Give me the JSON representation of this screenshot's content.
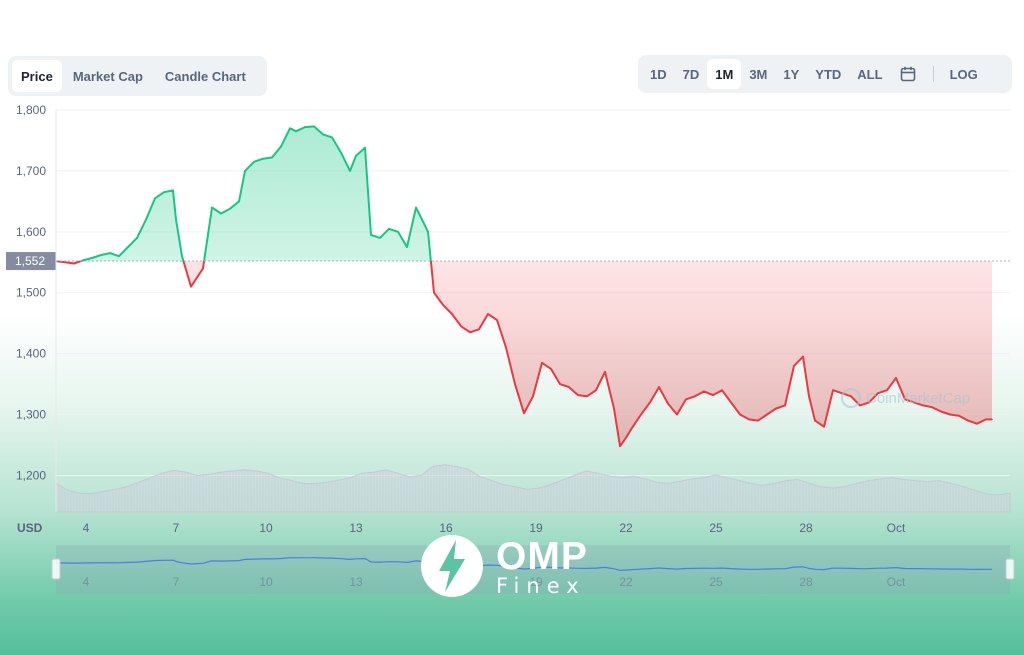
{
  "tabs": [
    {
      "label": "Price",
      "active": true
    },
    {
      "label": "Market Cap",
      "active": false
    },
    {
      "label": "Candle Chart",
      "active": false
    }
  ],
  "ranges": [
    {
      "label": "1D",
      "active": false
    },
    {
      "label": "7D",
      "active": false
    },
    {
      "label": "1M",
      "active": true
    },
    {
      "label": "3M",
      "active": false
    },
    {
      "label": "1Y",
      "active": false
    },
    {
      "label": "YTD",
      "active": false
    },
    {
      "label": "ALL",
      "active": false
    }
  ],
  "log_label": "LOG",
  "calendar_icon": "calendar-icon",
  "currency_label": "USD",
  "watermark": "CoinMarketCap",
  "logo": {
    "text": "OMP",
    "sub": "Finex"
  },
  "colors": {
    "up": "#16c784",
    "down": "#ea3943",
    "reference": "#858ca2",
    "accent": "#3861fb"
  },
  "chart_data": {
    "type": "line",
    "reference_value": 1552,
    "reference_label": "1,552",
    "ylim": [
      1140,
      1800
    ],
    "yticks": [
      1800,
      1700,
      1600,
      1500,
      1400,
      1300,
      1200
    ],
    "ytick_labels": [
      "1,800",
      "1,700",
      "1,600",
      "1,500",
      "1,400",
      "1,300",
      "1,200"
    ],
    "xlim": [
      3,
      34.8
    ],
    "xticks": [
      4,
      7,
      10,
      13,
      16,
      19,
      22,
      25,
      28,
      31
    ],
    "xtick_labels": [
      "4",
      "7",
      "10",
      "13",
      "16",
      "19",
      "22",
      "25",
      "28",
      "Oct"
    ],
    "grid": true,
    "series": [
      {
        "x": [
          3.0,
          3.3,
          3.6,
          3.9,
          4.2,
          4.5,
          4.8,
          5.1,
          5.4,
          5.7,
          6.0,
          6.3,
          6.6,
          6.9,
          7.0,
          7.2,
          7.5,
          7.7,
          7.9,
          8.2,
          8.5,
          8.8,
          9.1,
          9.3,
          9.6,
          9.9,
          10.2,
          10.5,
          10.8,
          11.0,
          11.3,
          11.6,
          11.9,
          12.2,
          12.5,
          12.8,
          13.0,
          13.3,
          13.5,
          13.8,
          14.1,
          14.4,
          14.7,
          15.0,
          15.2,
          15.4,
          15.6,
          15.9,
          16.2,
          16.5,
          16.8,
          17.1,
          17.4,
          17.7,
          18.0,
          18.3,
          18.6,
          18.9,
          19.2,
          19.5,
          19.8,
          20.1,
          20.4,
          20.7,
          21.0,
          21.3,
          21.6,
          21.8,
          22.0,
          22.2,
          22.5,
          22.8,
          23.1,
          23.4,
          23.7,
          24.0,
          24.3,
          24.6,
          24.9,
          25.2,
          25.5,
          25.8,
          26.1,
          26.4,
          26.7,
          27.0,
          27.3,
          27.6,
          27.9,
          28.1,
          28.3,
          28.6,
          28.9,
          29.2,
          29.5,
          29.8,
          30.1,
          30.4,
          30.7,
          31.0,
          31.3,
          31.6,
          31.9,
          32.2,
          32.5,
          32.8,
          33.1,
          33.4,
          33.7,
          34.0,
          34.2
        ],
        "y": [
          1552,
          1550,
          1548,
          1553,
          1557,
          1562,
          1565,
          1560,
          1575,
          1590,
          1620,
          1655,
          1665,
          1668,
          1620,
          1560,
          1510,
          1525,
          1540,
          1640,
          1630,
          1638,
          1650,
          1700,
          1715,
          1720,
          1722,
          1740,
          1770,
          1765,
          1772,
          1773,
          1760,
          1755,
          1730,
          1700,
          1725,
          1738,
          1595,
          1590,
          1605,
          1600,
          1575,
          1640,
          1620,
          1600,
          1500,
          1480,
          1465,
          1445,
          1435,
          1440,
          1465,
          1455,
          1410,
          1350,
          1302,
          1330,
          1385,
          1375,
          1350,
          1345,
          1332,
          1330,
          1340,
          1370,
          1310,
          1248,
          1262,
          1278,
          1300,
          1320,
          1345,
          1318,
          1300,
          1325,
          1330,
          1338,
          1332,
          1340,
          1320,
          1300,
          1292,
          1290,
          1300,
          1310,
          1315,
          1380,
          1395,
          1330,
          1290,
          1280,
          1340,
          1335,
          1330,
          1315,
          1320,
          1335,
          1340,
          1360,
          1325,
          1320,
          1315,
          1312,
          1305,
          1300,
          1298,
          1290,
          1285,
          1292,
          1292
        ]
      }
    ],
    "volume": [
      0.5,
      0.38,
      0.33,
      0.32,
      0.36,
      0.4,
      0.44,
      0.52,
      0.6,
      0.68,
      0.73,
      0.7,
      0.64,
      0.66,
      0.7,
      0.72,
      0.74,
      0.72,
      0.68,
      0.6,
      0.55,
      0.5,
      0.5,
      0.52,
      0.56,
      0.6,
      0.68,
      0.7,
      0.74,
      0.68,
      0.62,
      0.64,
      0.8,
      0.83,
      0.8,
      0.75,
      0.62,
      0.55,
      0.48,
      0.44,
      0.4,
      0.42,
      0.48,
      0.56,
      0.64,
      0.72,
      0.68,
      0.63,
      0.6,
      0.63,
      0.58,
      0.52,
      0.5,
      0.54,
      0.58,
      0.6,
      0.65,
      0.6,
      0.55,
      0.5,
      0.47,
      0.5,
      0.55,
      0.57,
      0.5,
      0.44,
      0.42,
      0.45,
      0.5,
      0.55,
      0.58,
      0.6,
      0.57,
      0.55,
      0.53,
      0.55,
      0.5,
      0.45,
      0.38,
      0.32,
      0.3,
      0.33
    ]
  }
}
